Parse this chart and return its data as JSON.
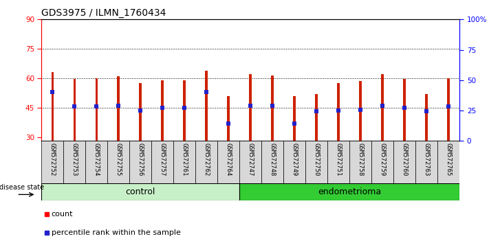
{
  "title": "GDS3975 / ILMN_1760434",
  "samples": [
    "GSM572752",
    "GSM572753",
    "GSM572754",
    "GSM572755",
    "GSM572756",
    "GSM572757",
    "GSM572761",
    "GSM572762",
    "GSM572764",
    "GSM572747",
    "GSM572748",
    "GSM572749",
    "GSM572750",
    "GSM572751",
    "GSM572758",
    "GSM572759",
    "GSM572760",
    "GSM572763",
    "GSM572765"
  ],
  "bar_heights": [
    63,
    59.5,
    60,
    61,
    57.5,
    59,
    59,
    64,
    51,
    62,
    61.5,
    51,
    52,
    57.5,
    58.5,
    62,
    59.5,
    52,
    60
  ],
  "blue_dots": [
    53,
    45.5,
    45.5,
    46,
    43.5,
    45,
    45,
    53,
    37,
    46,
    46,
    37,
    43,
    43.5,
    44,
    46,
    45,
    43,
    45.5
  ],
  "n_control": 9,
  "n_total": 19,
  "ylim": [
    28,
    90
  ],
  "yticks": [
    30,
    45,
    60,
    75,
    90
  ],
  "grid_ticks": [
    45,
    60,
    75
  ],
  "right_yticks": [
    0,
    25,
    50,
    75,
    100
  ],
  "right_ytick_labels": [
    "0",
    "25",
    "50",
    "75",
    "100%"
  ],
  "bar_color": "#cc2200",
  "dot_color": "#2222cc",
  "bar_width": 0.12,
  "sample_box_color": "#d8d8d8",
  "ctrl_color": "#c8f0c8",
  "endo_color": "#33cc33",
  "plot_bg": "#ffffff",
  "tick_fontsize": 7.5,
  "sample_fontsize": 6.5,
  "title_fontsize": 10,
  "group_fontsize": 9,
  "legend_fontsize": 8
}
